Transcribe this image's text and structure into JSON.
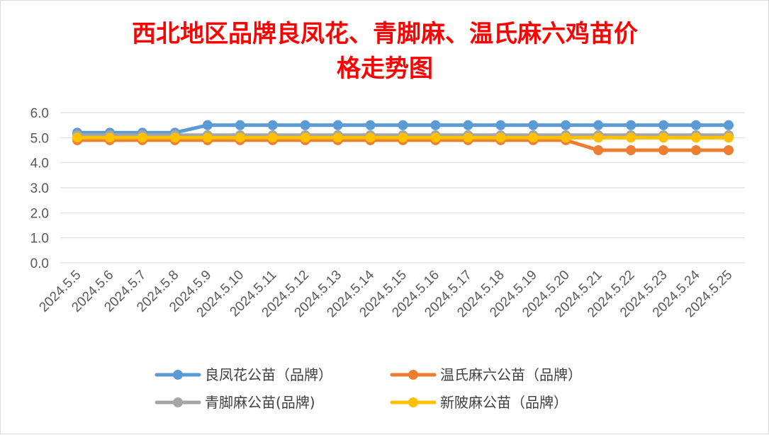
{
  "chart_data": {
    "type": "line",
    "title_lines": [
      "西北地区品牌良凤花、青脚麻、温氏麻六鸡苗价",
      "格走势图"
    ],
    "xlabel": "",
    "ylabel": "",
    "ylim": [
      0,
      6
    ],
    "yticks": [
      "0.0",
      "1.0",
      "2.0",
      "3.0",
      "4.0",
      "5.0",
      "6.0"
    ],
    "grid": true,
    "legend_position": "bottom",
    "categories": [
      "2024.5.5",
      "2024.5.6",
      "2024.5.7",
      "2024.5.8",
      "2024.5.9",
      "2024.5.10",
      "2024.5.11",
      "2024.5.12",
      "2024.5.13",
      "2024.5.14",
      "2024.5.15",
      "2024.5.16",
      "2024.5.17",
      "2024.5.18",
      "2024.5.19",
      "2024.5.20",
      "2024.5.21",
      "2024.5.22",
      "2024.5.23",
      "2024.5.24",
      "2024.5.25"
    ],
    "series": [
      {
        "name": "良凤花公苗（品牌）",
        "color": "#5b9bd5",
        "values": [
          5.2,
          5.2,
          5.2,
          5.2,
          5.5,
          5.5,
          5.5,
          5.5,
          5.5,
          5.5,
          5.5,
          5.5,
          5.5,
          5.5,
          5.5,
          5.5,
          5.5,
          5.5,
          5.5,
          5.5,
          5.5
        ]
      },
      {
        "name": "温氏麻六公苗（品牌）",
        "color": "#ed7d31",
        "values": [
          4.9,
          4.9,
          4.9,
          4.9,
          4.9,
          4.9,
          4.9,
          4.9,
          4.9,
          4.9,
          4.9,
          4.9,
          4.9,
          4.9,
          4.9,
          4.9,
          4.5,
          4.5,
          4.5,
          4.5,
          4.5
        ]
      },
      {
        "name": "青脚麻公苗(品牌)",
        "color": "#a5a5a5",
        "values": [
          5.1,
          5.1,
          5.1,
          5.1,
          5.1,
          5.1,
          5.1,
          5.1,
          5.1,
          5.1,
          5.1,
          5.1,
          5.1,
          5.1,
          5.1,
          5.1,
          5.1,
          5.1,
          5.1,
          5.1,
          5.1
        ]
      },
      {
        "name": "新陂麻公苗（品牌）",
        "color": "#ffc000",
        "values": [
          5.0,
          5.0,
          5.0,
          5.0,
          5.0,
          5.0,
          5.0,
          5.0,
          5.0,
          5.0,
          5.0,
          5.0,
          5.0,
          5.0,
          5.0,
          5.0,
          5.0,
          5.0,
          5.0,
          5.0,
          5.0
        ]
      }
    ]
  }
}
